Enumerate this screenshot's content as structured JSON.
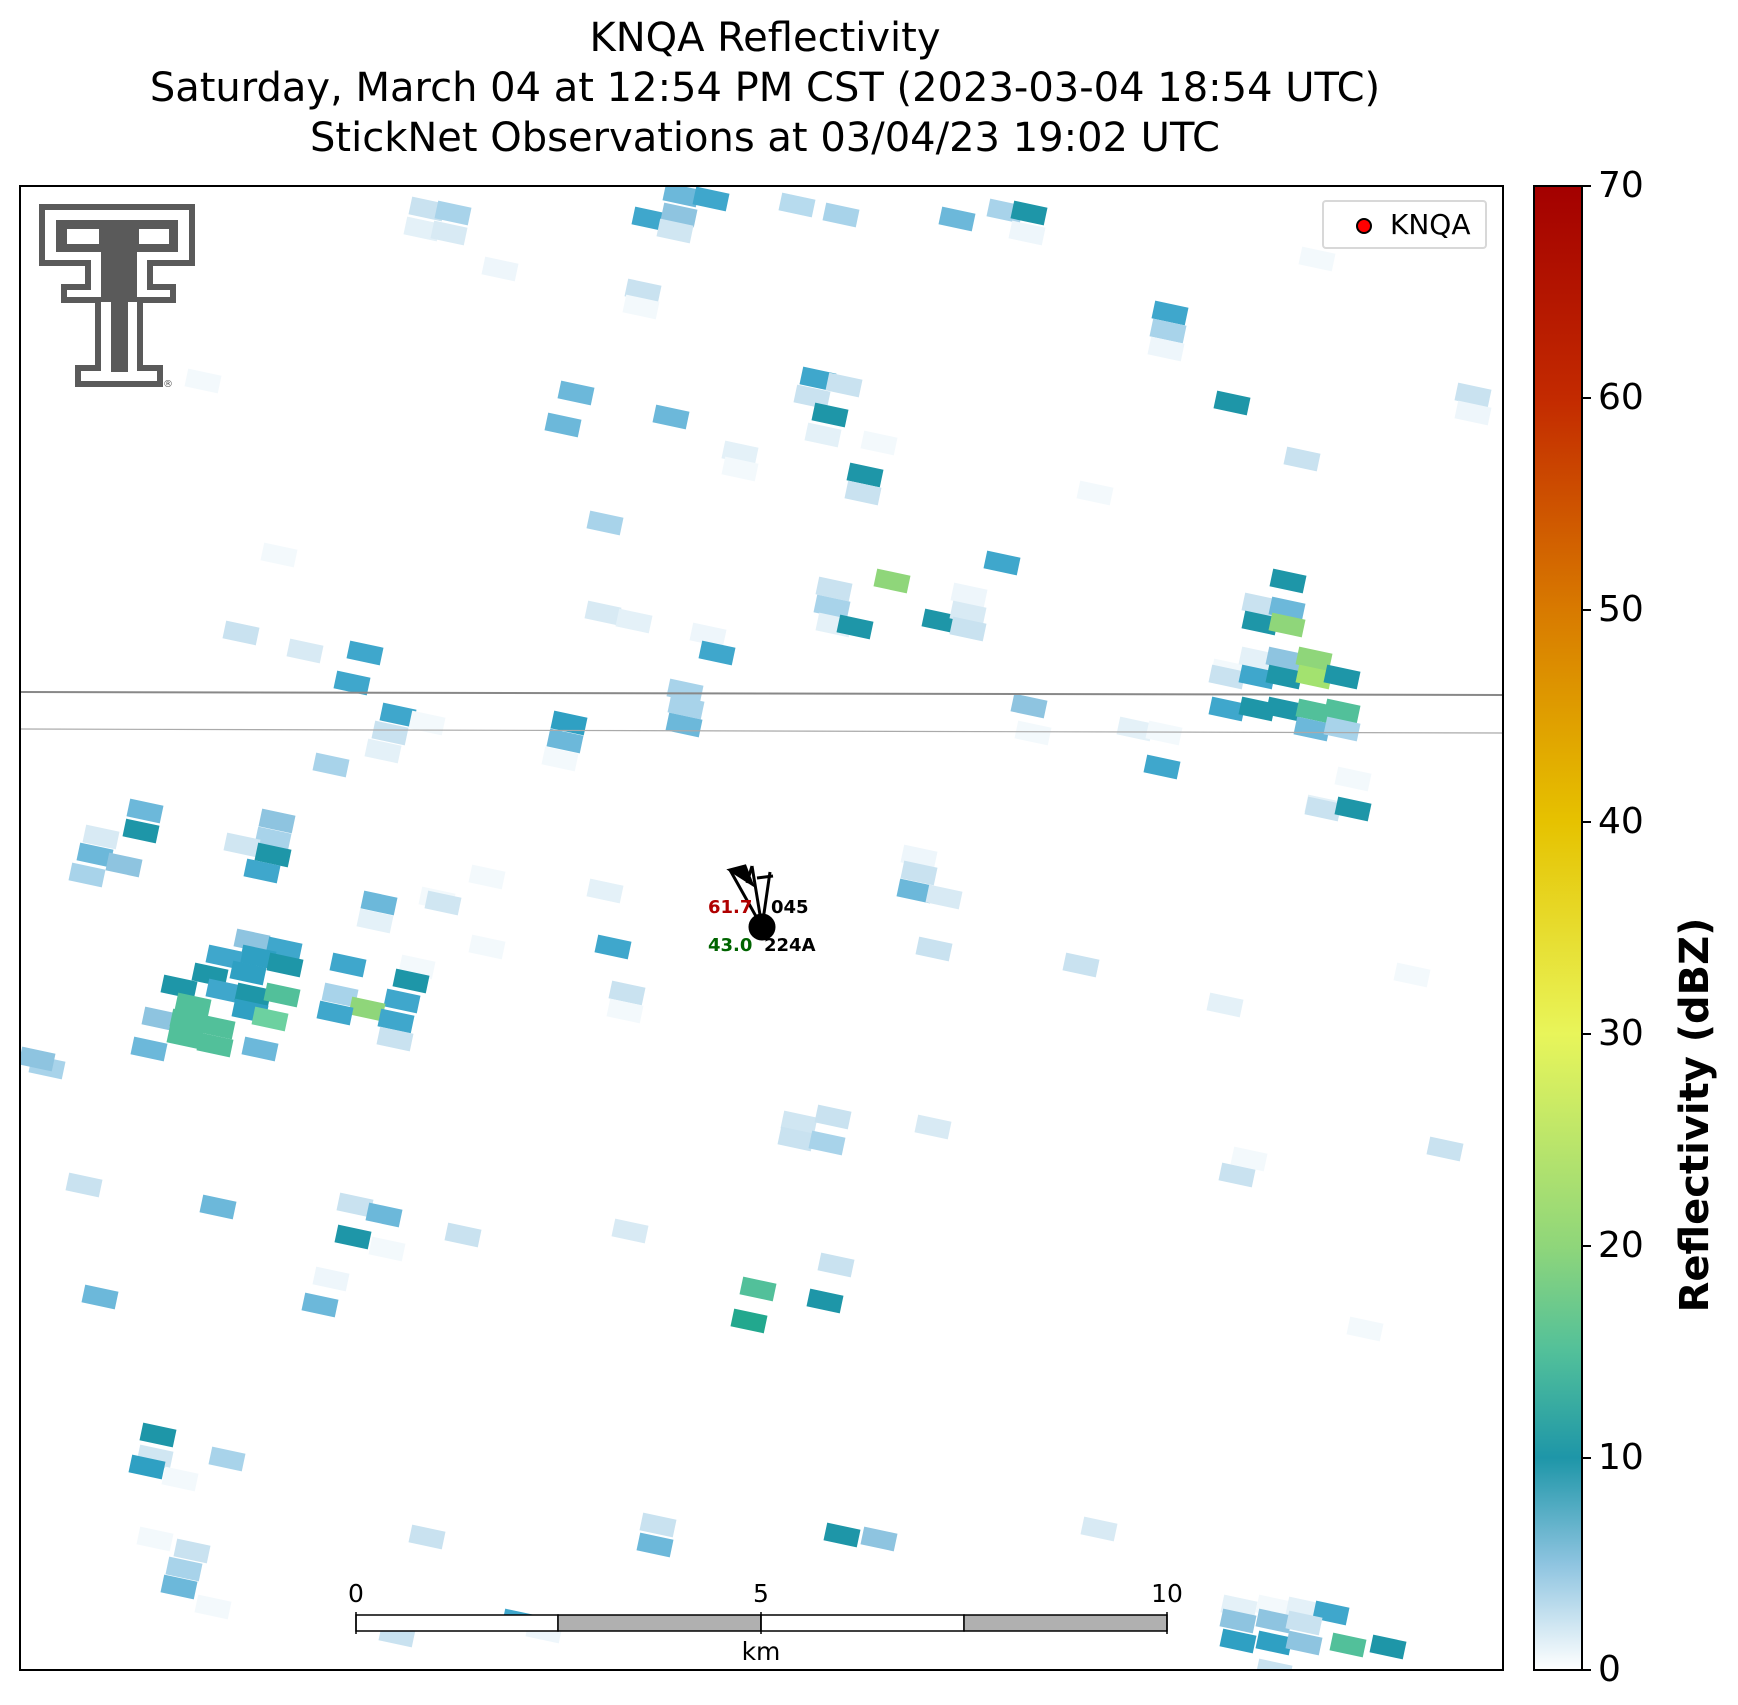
{
  "title": {
    "line1": "KNQA Reflectivity",
    "line2": "Saturday, March 04 at 12:54 PM CST (2023-03-04 18:54 UTC)",
    "line3": "StickNet Observations at 03/04/23 19:02 UTC"
  },
  "legend": {
    "label": "KNQA",
    "marker_color": "#ff0000"
  },
  "colorbar": {
    "label": "Reflectivity (dBZ)",
    "range": [
      0,
      70
    ],
    "ticks": [
      "0",
      "10",
      "20",
      "30",
      "40",
      "50",
      "60",
      "70"
    ],
    "stops": [
      {
        "v": 0,
        "c": "#ffffff"
      },
      {
        "v": 5,
        "c": "#8ec4e0"
      },
      {
        "v": 10,
        "c": "#1e96a8"
      },
      {
        "v": 15,
        "c": "#52c09a"
      },
      {
        "v": 20,
        "c": "#8fd67a"
      },
      {
        "v": 30,
        "c": "#e8f55a"
      },
      {
        "v": 40,
        "c": "#e6c200"
      },
      {
        "v": 50,
        "c": "#d87a00"
      },
      {
        "v": 60,
        "c": "#c32a00"
      },
      {
        "v": 70,
        "c": "#a30000"
      }
    ]
  },
  "scale_bar": {
    "ticks": [
      "0",
      "5",
      "10"
    ],
    "unit": "km"
  },
  "station": {
    "temperature": "61.7",
    "dewpoint": "43.0",
    "pressure": "045",
    "id": "224A",
    "temp_color": "#b00000",
    "dew_color": "#006400"
  },
  "logo": {
    "name": "texas-tech-double-t-logo",
    "color": "#5a5a5a"
  }
}
